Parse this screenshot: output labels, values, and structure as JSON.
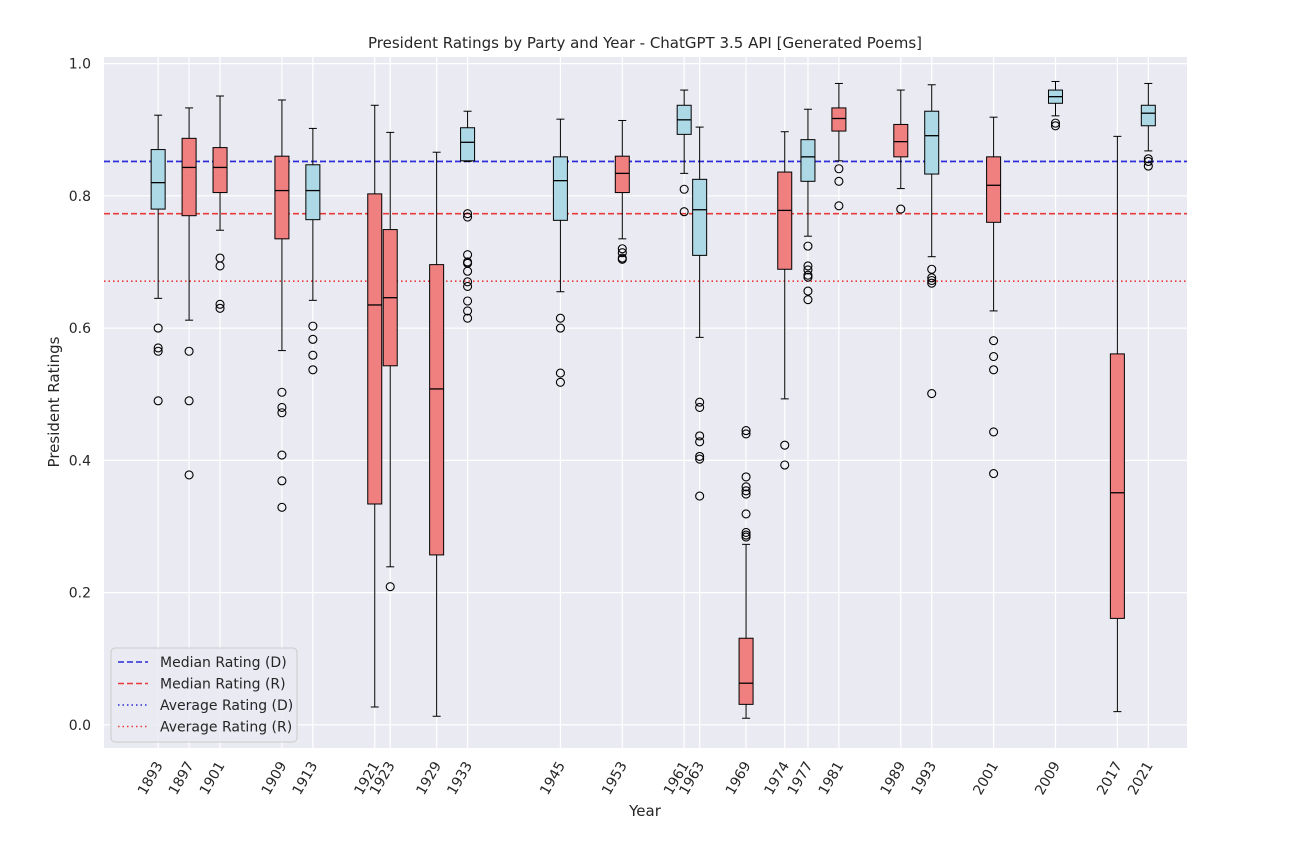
{
  "chart_data": {
    "type": "box",
    "title": "President Ratings by Party and Year - ChatGPT 3.5 API [Generated Poems]",
    "xlabel": "Year",
    "ylabel": "President Ratings",
    "xlim": [
      1886,
      2026
    ],
    "ylim": [
      -0.035,
      1.01
    ],
    "yticks": [
      0.0,
      0.2,
      0.4,
      0.6,
      0.8,
      1.0
    ],
    "ytick_labels": [
      "0.0",
      "0.2",
      "0.4",
      "0.6",
      "0.8",
      "1.0"
    ],
    "grid": true,
    "legend_position": "lower-left",
    "party_colors": {
      "D": "#add8e6",
      "R": "#f08080"
    },
    "line_colors": {
      "D": "#2b2bd9",
      "R": "#e83a3a"
    },
    "reference_lines": [
      {
        "label": "Median Rating (D)",
        "party": "D",
        "style": "dashed",
        "y": 0.852
      },
      {
        "label": "Median Rating (R)",
        "party": "R",
        "style": "dashed",
        "y": 0.773
      },
      {
        "label": "Average Rating (D)",
        "party": "D",
        "style": "dotted",
        "y": 0.852
      },
      {
        "label": "Average Rating (R)",
        "party": "R",
        "style": "dotted",
        "y": 0.671
      }
    ],
    "boxes": [
      {
        "year": 1893,
        "label": "1893",
        "party": "D",
        "whislo": 0.645,
        "q1": 0.78,
        "med": 0.82,
        "q3": 0.87,
        "whishi": 0.922,
        "fliers": [
          0.6,
          0.57,
          0.565,
          0.49
        ]
      },
      {
        "year": 1897,
        "label": "1897",
        "party": "R",
        "whislo": 0.612,
        "q1": 0.77,
        "med": 0.843,
        "q3": 0.887,
        "whishi": 0.933,
        "fliers": [
          0.565,
          0.49,
          0.378
        ]
      },
      {
        "year": 1901,
        "label": "1901",
        "party": "R",
        "whislo": 0.748,
        "q1": 0.805,
        "med": 0.843,
        "q3": 0.873,
        "whishi": 0.951,
        "fliers": [
          0.706,
          0.694,
          0.636,
          0.63
        ]
      },
      {
        "year": 1909,
        "label": "1909",
        "party": "R",
        "whislo": 0.566,
        "q1": 0.735,
        "med": 0.808,
        "q3": 0.86,
        "whishi": 0.945,
        "fliers": [
          0.503,
          0.48,
          0.472,
          0.408,
          0.369,
          0.329
        ]
      },
      {
        "year": 1913,
        "label": "1913",
        "party": "D",
        "whislo": 0.642,
        "q1": 0.764,
        "med": 0.808,
        "q3": 0.847,
        "whishi": 0.902,
        "fliers": [
          0.603,
          0.583,
          0.559,
          0.537
        ]
      },
      {
        "year": 1921,
        "label": "1921",
        "party": "R",
        "whislo": 0.027,
        "q1": 0.334,
        "med": 0.635,
        "q3": 0.803,
        "whishi": 0.937,
        "fliers": []
      },
      {
        "year": 1923,
        "label": "1923",
        "party": "R",
        "whislo": 0.239,
        "q1": 0.543,
        "med": 0.646,
        "q3": 0.749,
        "whishi": 0.896,
        "fliers": [
          0.209
        ]
      },
      {
        "year": 1929,
        "label": "1929",
        "party": "R",
        "whislo": 0.013,
        "q1": 0.257,
        "med": 0.508,
        "q3": 0.696,
        "whishi": 0.866,
        "fliers": []
      },
      {
        "year": 1933,
        "label": "1933",
        "party": "D",
        "whislo": 0.852,
        "q1": 0.853,
        "med": 0.881,
        "q3": 0.903,
        "whishi": 0.928,
        "fliers": [
          0.773,
          0.768,
          0.711,
          0.7,
          0.698,
          0.686,
          0.67,
          0.663,
          0.641,
          0.626,
          0.615
        ]
      },
      {
        "year": 1945,
        "label": "1945",
        "party": "D",
        "whislo": 0.655,
        "q1": 0.763,
        "med": 0.823,
        "q3": 0.859,
        "whishi": 0.916,
        "fliers": [
          0.615,
          0.6,
          0.532,
          0.518
        ]
      },
      {
        "year": 1953,
        "label": "1953",
        "party": "R",
        "whislo": 0.735,
        "q1": 0.805,
        "med": 0.834,
        "q3": 0.86,
        "whishi": 0.914,
        "fliers": [
          0.72,
          0.714,
          0.706,
          0.704
        ]
      },
      {
        "year": 1961,
        "label": "1961",
        "party": "D",
        "whislo": 0.834,
        "q1": 0.893,
        "med": 0.915,
        "q3": 0.937,
        "whishi": 0.96,
        "fliers": [
          0.81,
          0.776
        ]
      },
      {
        "year": 1963,
        "label": "1963",
        "party": "D",
        "whislo": 0.586,
        "q1": 0.71,
        "med": 0.779,
        "q3": 0.825,
        "whishi": 0.904,
        "fliers": [
          0.488,
          0.48,
          0.437,
          0.428,
          0.406,
          0.402,
          0.346
        ]
      },
      {
        "year": 1969,
        "label": "1969",
        "party": "R",
        "whislo": 0.01,
        "q1": 0.031,
        "med": 0.063,
        "q3": 0.131,
        "whishi": 0.273,
        "fliers": [
          0.445,
          0.44,
          0.375,
          0.36,
          0.354,
          0.349,
          0.319,
          0.291,
          0.287,
          0.284
        ]
      },
      {
        "year": 1974,
        "label": "1974",
        "party": "R",
        "whislo": 0.493,
        "q1": 0.689,
        "med": 0.778,
        "q3": 0.836,
        "whishi": 0.897,
        "fliers": [
          0.423,
          0.393
        ]
      },
      {
        "year": 1977,
        "label": "1977",
        "party": "D",
        "whislo": 0.739,
        "q1": 0.822,
        "med": 0.859,
        "q3": 0.885,
        "whishi": 0.931,
        "fliers": [
          0.724,
          0.694,
          0.688,
          0.68,
          0.677,
          0.656,
          0.643
        ]
      },
      {
        "year": 1981,
        "label": "1981",
        "party": "R",
        "whislo": 0.853,
        "q1": 0.898,
        "med": 0.917,
        "q3": 0.933,
        "whishi": 0.97,
        "fliers": [
          0.841,
          0.822,
          0.785
        ]
      },
      {
        "year": 1989,
        "label": "1989",
        "party": "R",
        "whislo": 0.811,
        "q1": 0.859,
        "med": 0.882,
        "q3": 0.908,
        "whishi": 0.96,
        "fliers": [
          0.78
        ]
      },
      {
        "year": 1993,
        "label": "1993",
        "party": "D",
        "whislo": 0.708,
        "q1": 0.833,
        "med": 0.891,
        "q3": 0.928,
        "whishi": 0.968,
        "fliers": [
          0.689,
          0.676,
          0.672,
          0.668,
          0.501
        ]
      },
      {
        "year": 2001,
        "label": "2001",
        "party": "R",
        "whislo": 0.626,
        "q1": 0.76,
        "med": 0.816,
        "q3": 0.859,
        "whishi": 0.919,
        "fliers": [
          0.581,
          0.557,
          0.537,
          0.443,
          0.38
        ]
      },
      {
        "year": 2009,
        "label": "2009",
        "party": "D",
        "whislo": 0.921,
        "q1": 0.94,
        "med": 0.95,
        "q3": 0.96,
        "whishi": 0.973,
        "fliers": [
          0.91,
          0.906
        ]
      },
      {
        "year": 2017,
        "label": "2017",
        "party": "R",
        "whislo": 0.02,
        "q1": 0.161,
        "med": 0.351,
        "q3": 0.561,
        "whishi": 0.89,
        "fliers": []
      },
      {
        "year": 2021,
        "label": "2021",
        "party": "D",
        "whislo": 0.868,
        "q1": 0.906,
        "med": 0.925,
        "q3": 0.937,
        "whishi": 0.97,
        "fliers": [
          0.856,
          0.852,
          0.845
        ]
      }
    ]
  }
}
